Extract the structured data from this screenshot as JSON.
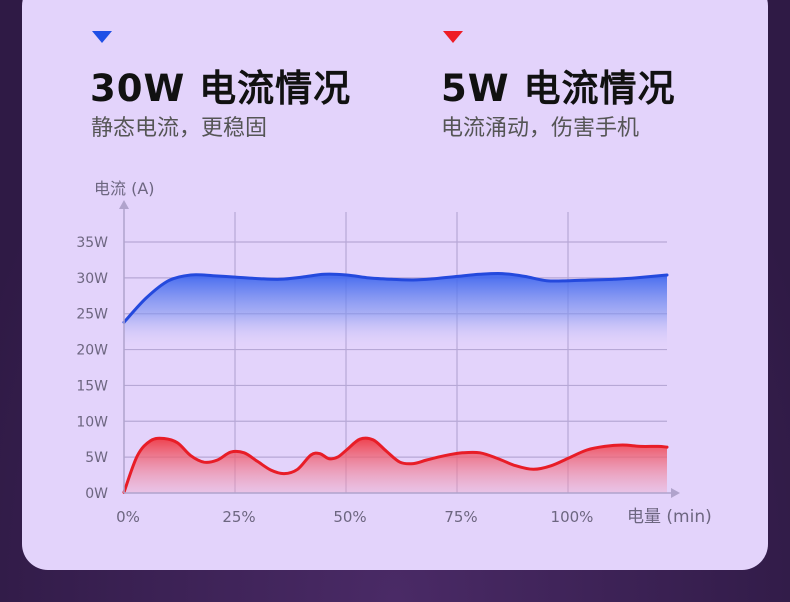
{
  "legend": [
    {
      "title": "30W 电流情况",
      "subtitle": "静态电流，更稳固",
      "color": "#1f4fe6"
    },
    {
      "title": "5W 电流情况",
      "subtitle": "电流涌动，伤害手机",
      "color": "#ee1c25"
    }
  ],
  "chart_data": {
    "type": "area",
    "ylabel": "电流 (A)",
    "xlabel": "电量 (min)",
    "yticks": [
      "0W",
      "5W",
      "10W",
      "15W",
      "20W",
      "25W",
      "30W",
      "35W"
    ],
    "xticks": [
      "0%",
      "25%",
      "50%",
      "75%",
      "100%"
    ],
    "ylim": [
      0,
      35
    ],
    "xlim": [
      0,
      122
    ],
    "grid": true,
    "series": [
      {
        "color": "#2449dd",
        "x": [
          0,
          5,
          10,
          15,
          20,
          25,
          30,
          35,
          40,
          45,
          50,
          55,
          60,
          65,
          70,
          75,
          80,
          85,
          90,
          95,
          100,
          105,
          110,
          115,
          122
        ],
        "y": [
          23.8,
          27.2,
          29.6,
          30.4,
          30.3,
          30.1,
          29.9,
          29.8,
          30.1,
          30.5,
          30.4,
          30.0,
          29.8,
          29.7,
          29.9,
          30.2,
          30.5,
          30.6,
          30.2,
          29.6,
          29.6,
          29.7,
          29.8,
          30.0,
          30.4
        ]
      },
      {
        "color": "#e81d27",
        "x": [
          0,
          3,
          6,
          9,
          12,
          15,
          18,
          21,
          24,
          27,
          30,
          33,
          36,
          39,
          42,
          44,
          46,
          48,
          50,
          53,
          56,
          59,
          62,
          65,
          68,
          72,
          76,
          80,
          84,
          88,
          92,
          96,
          100,
          104,
          108,
          112,
          116,
          120,
          122
        ],
        "y": [
          0.1,
          5.2,
          7.3,
          7.6,
          7.0,
          5.2,
          4.3,
          4.6,
          5.7,
          5.6,
          4.4,
          3.2,
          2.7,
          3.3,
          5.3,
          5.5,
          4.8,
          5.0,
          6.0,
          7.5,
          7.4,
          5.8,
          4.3,
          4.1,
          4.6,
          5.2,
          5.6,
          5.6,
          4.8,
          3.8,
          3.3,
          3.8,
          4.9,
          6.0,
          6.5,
          6.7,
          6.5,
          6.5,
          6.4
        ]
      }
    ]
  }
}
